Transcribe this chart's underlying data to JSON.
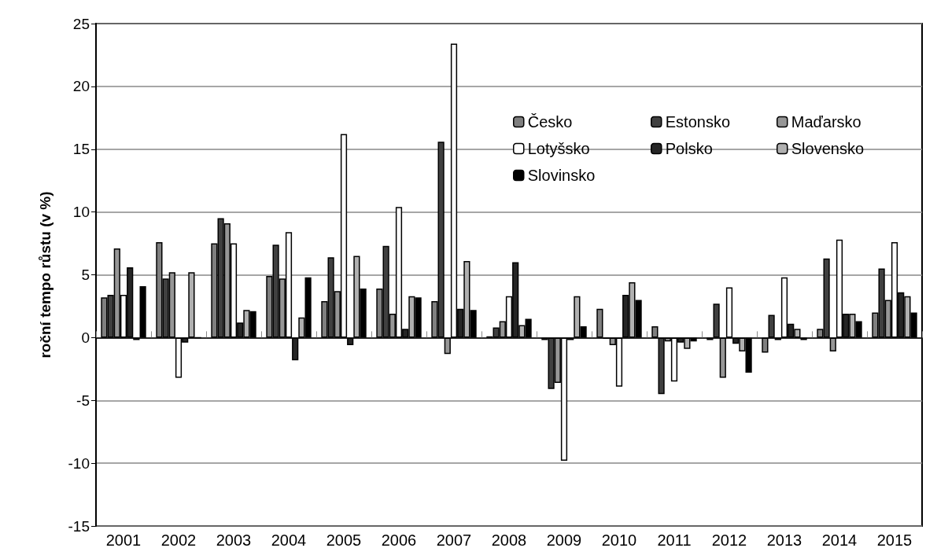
{
  "chart_data": {
    "type": "bar",
    "ylabel": "roční tempo růstu (v %)",
    "categories": [
      "2001",
      "2002",
      "2003",
      "2004",
      "2005",
      "2006",
      "2007",
      "2008",
      "2009",
      "2010",
      "2011",
      "2012",
      "2013",
      "2014",
      "2015"
    ],
    "series": [
      {
        "name": "Česko",
        "color": "#7f7f7f",
        "values": [
          3.2,
          7.6,
          7.5,
          4.9,
          2.9,
          3.9,
          2.9,
          0.1,
          -0.2,
          2.3,
          0.9,
          -0.2,
          -1.2,
          0.7,
          2.0
        ]
      },
      {
        "name": "Estonsko",
        "color": "#404040",
        "values": [
          3.4,
          4.7,
          9.5,
          7.4,
          6.4,
          7.3,
          15.6,
          0.8,
          -4.1,
          -0.1,
          -4.5,
          2.7,
          1.8,
          6.3,
          5.5
        ]
      },
      {
        "name": "Maďarsko",
        "color": "#969696",
        "values": [
          7.1,
          5.2,
          9.1,
          4.7,
          3.7,
          1.9,
          -1.3,
          1.3,
          -3.6,
          -0.6,
          -0.3,
          -3.2,
          -0.2,
          -1.1,
          3.0
        ]
      },
      {
        "name": "Lotyšsko",
        "color": "#ffffff",
        "values": [
          3.4,
          -3.2,
          7.5,
          8.4,
          16.2,
          10.4,
          23.4,
          3.3,
          -9.8,
          -3.9,
          -3.5,
          4.0,
          4.8,
          7.8,
          7.6
        ]
      },
      {
        "name": "Polsko",
        "color": "#262626",
        "values": [
          5.6,
          -0.4,
          1.2,
          -1.8,
          -0.6,
          0.7,
          2.3,
          6.0,
          -0.2,
          3.4,
          -0.4,
          -0.5,
          1.1,
          1.9,
          3.6
        ]
      },
      {
        "name": "Slovensko",
        "color": "#b0b0b0",
        "values": [
          -0.2,
          5.2,
          2.2,
          1.6,
          6.5,
          3.3,
          6.1,
          1.0,
          3.3,
          4.4,
          -0.9,
          -1.1,
          0.7,
          1.9,
          3.3
        ]
      },
      {
        "name": "Slovinsko",
        "color": "#000000",
        "values": [
          4.1,
          0.0,
          2.1,
          4.8,
          3.9,
          3.2,
          2.2,
          1.5,
          0.9,
          3.0,
          -0.3,
          -2.8,
          -0.2,
          1.3,
          2.0
        ]
      }
    ],
    "ylim": [
      -15,
      25
    ],
    "yticks": [
      -15,
      -10,
      -5,
      0,
      5,
      10,
      15,
      20,
      25
    ],
    "grid": "y",
    "legend": "top right"
  }
}
